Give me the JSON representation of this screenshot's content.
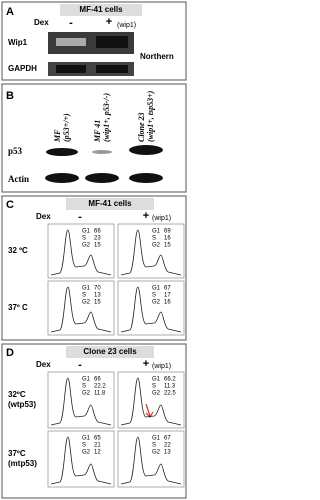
{
  "panel_a": {
    "label": "A",
    "title": "MF-41 cells",
    "treatment": "Dex",
    "minus": "-",
    "plus": "+",
    "plus_note": "(wip1)",
    "rows": [
      "Wip1",
      "GAPDH"
    ],
    "method": "Northern"
  },
  "panel_b": {
    "label": "B",
    "lanes": [
      [
        "MF",
        "(p53+/+)"
      ],
      [
        "MF 41",
        "(wip1+, p53-/-)"
      ],
      [
        "Clone 23",
        "(wip1+, tsp53+)"
      ]
    ],
    "rows": [
      "p53",
      "Actin"
    ]
  },
  "panel_c": {
    "label": "C",
    "title": "MF-41 cells",
    "treatment": "Dex",
    "minus": "-",
    "plus": "+",
    "plus_note": "(wip1)",
    "phases": [
      "G1",
      "S",
      "G2"
    ],
    "rows": [
      {
        "label": [
          "32 ºC"
        ],
        "cells": [
          {
            "values": [
              66,
              23,
              15
            ]
          },
          {
            "values": [
              69,
              16,
              15
            ]
          }
        ]
      },
      {
        "label": [
          "37º C"
        ],
        "cells": [
          {
            "values": [
              70,
              13,
              15
            ]
          },
          {
            "values": [
              67,
              17,
              16
            ]
          }
        ]
      }
    ]
  },
  "panel_d": {
    "label": "D",
    "title": "Clone 23 cells",
    "treatment": "Dex",
    "minus": "-",
    "plus": "+",
    "plus_note": "(wip1)",
    "phases": [
      "G1",
      "S",
      "G2"
    ],
    "rows": [
      {
        "label": [
          "32ºC",
          "(wtp53)"
        ],
        "cells": [
          {
            "values": [
              66,
              22.2,
              11.8
            ]
          },
          {
            "values": [
              66.2,
              11.3,
              22.5
            ],
            "value_colors": [
              "#000000",
              "#000000",
              "#d0302a"
            ]
          }
        ]
      },
      {
        "label": [
          "37ºC",
          "(mtp53)"
        ],
        "cells": [
          {
            "values": [
              65,
              21,
              12
            ]
          },
          {
            "values": [
              67,
              22,
              13
            ]
          }
        ]
      }
    ]
  }
}
